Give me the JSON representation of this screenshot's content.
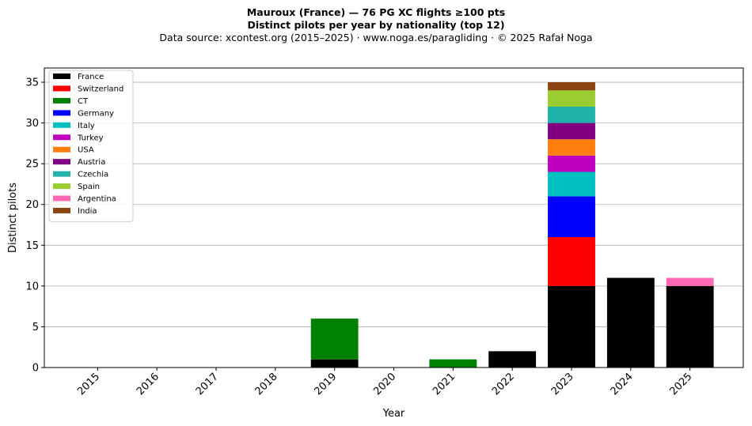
{
  "header": {
    "title_line1": "Mauroux (France)  —  76 PG XC flights ≥100 pts",
    "title_line2": "Distinct pilots per year by nationality (top 12)",
    "subtitle": "Data source: xcontest.org (2015–2025)  ·  www.noga.es/paragliding  ·  © 2025 Rafał Noga"
  },
  "chart_data": {
    "type": "bar",
    "stacked": true,
    "title": "Mauroux (France)  —  76 PG XC flights ≥100 pts\nDistinct pilots per year by nationality (top 12)",
    "xlabel": "Year",
    "ylabel": "Distinct pilots",
    "ylim": [
      0,
      36.75
    ],
    "yticks": [
      0,
      5,
      10,
      15,
      20,
      25,
      30,
      35
    ],
    "grid": "y",
    "legend_position": "top-left",
    "categories": [
      "2015",
      "2016",
      "2017",
      "2018",
      "2019",
      "2020",
      "2021",
      "2022",
      "2023",
      "2024",
      "2025"
    ],
    "series": [
      {
        "name": "France",
        "color": "#000000",
        "values": [
          0,
          0,
          0,
          0,
          1,
          0,
          0,
          2,
          10,
          11,
          10
        ]
      },
      {
        "name": "Switzerland",
        "color": "#ff0000",
        "values": [
          0,
          0,
          0,
          0,
          0,
          0,
          0,
          0,
          6,
          0,
          0
        ]
      },
      {
        "name": "CT",
        "color": "#008000",
        "values": [
          0,
          0,
          0,
          0,
          5,
          0,
          1,
          0,
          0,
          0,
          0
        ]
      },
      {
        "name": "Germany",
        "color": "#0000ff",
        "values": [
          0,
          0,
          0,
          0,
          0,
          0,
          0,
          0,
          5,
          0,
          0
        ]
      },
      {
        "name": "Italy",
        "color": "#00bfbf",
        "values": [
          0,
          0,
          0,
          0,
          0,
          0,
          0,
          0,
          3,
          0,
          0
        ]
      },
      {
        "name": "Turkey",
        "color": "#bf00bf",
        "values": [
          0,
          0,
          0,
          0,
          0,
          0,
          0,
          0,
          2,
          0,
          0
        ]
      },
      {
        "name": "USA",
        "color": "#ff7f0e",
        "values": [
          0,
          0,
          0,
          0,
          0,
          0,
          0,
          0,
          2,
          0,
          0
        ]
      },
      {
        "name": "Austria",
        "color": "#800080",
        "values": [
          0,
          0,
          0,
          0,
          0,
          0,
          0,
          0,
          2,
          0,
          0
        ]
      },
      {
        "name": "Czechia",
        "color": "#20b2aa",
        "values": [
          0,
          0,
          0,
          0,
          0,
          0,
          0,
          0,
          2,
          0,
          0
        ]
      },
      {
        "name": "Spain",
        "color": "#9acd32",
        "values": [
          0,
          0,
          0,
          0,
          0,
          0,
          0,
          0,
          2,
          0,
          0
        ]
      },
      {
        "name": "Argentina",
        "color": "#ff69b4",
        "values": [
          0,
          0,
          0,
          0,
          0,
          0,
          0,
          0,
          0,
          0,
          1
        ]
      },
      {
        "name": "India",
        "color": "#8b4513",
        "values": [
          0,
          0,
          0,
          0,
          0,
          0,
          0,
          0,
          1,
          0,
          0
        ]
      }
    ]
  }
}
